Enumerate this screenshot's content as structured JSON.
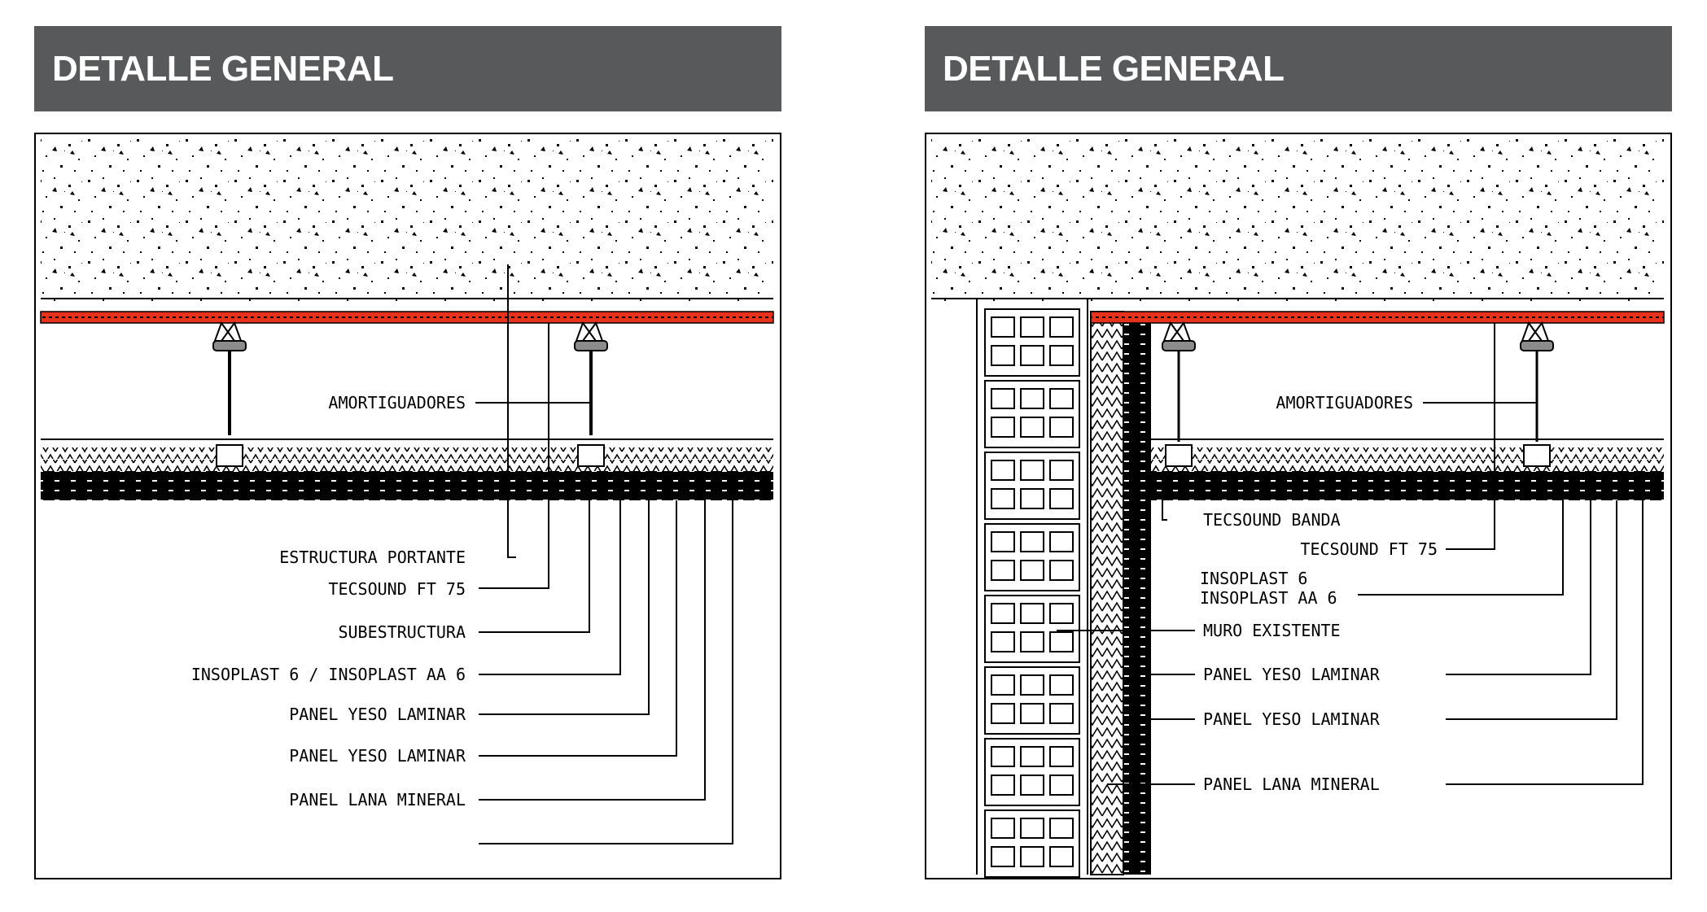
{
  "left_panel": {
    "title": "DETALLE GENERAL",
    "labels": {
      "amortiguadores": "AMORTIGUADORES",
      "estructura_portante": "ESTRUCTURA PORTANTE",
      "tecsound_ft75": "TECSOUND FT 75",
      "subestructura": "SUBESTRUCTURA",
      "insoplast": "INSOPLAST 6 / INSOPLAST AA 6",
      "panel_yeso_1": "PANEL YESO LAMINAR",
      "panel_yeso_2": "PANEL YESO LAMINAR",
      "panel_lana": "PANEL LANA MINERAL"
    }
  },
  "right_panel": {
    "title": "DETALLE GENERAL",
    "labels": {
      "amortiguadores": "AMORTIGUADORES",
      "tecsound_banda": "TECSOUND BANDA",
      "tecsound_ft75": "TECSOUND FT 75",
      "insoplast_6": "INSOPLAST 6",
      "insoplast_aa6": "INSOPLAST AA 6",
      "muro_existente": "MURO EXISTENTE",
      "panel_yeso_1": "PANEL YESO LAMINAR",
      "panel_yeso_2": "PANEL YESO LAMINAR",
      "panel_lana": "PANEL LANA MINERAL"
    }
  },
  "colors": {
    "header_bg": "#58595b",
    "membrane_red": "#e8321e",
    "damper_gray": "#8c8c8c"
  }
}
